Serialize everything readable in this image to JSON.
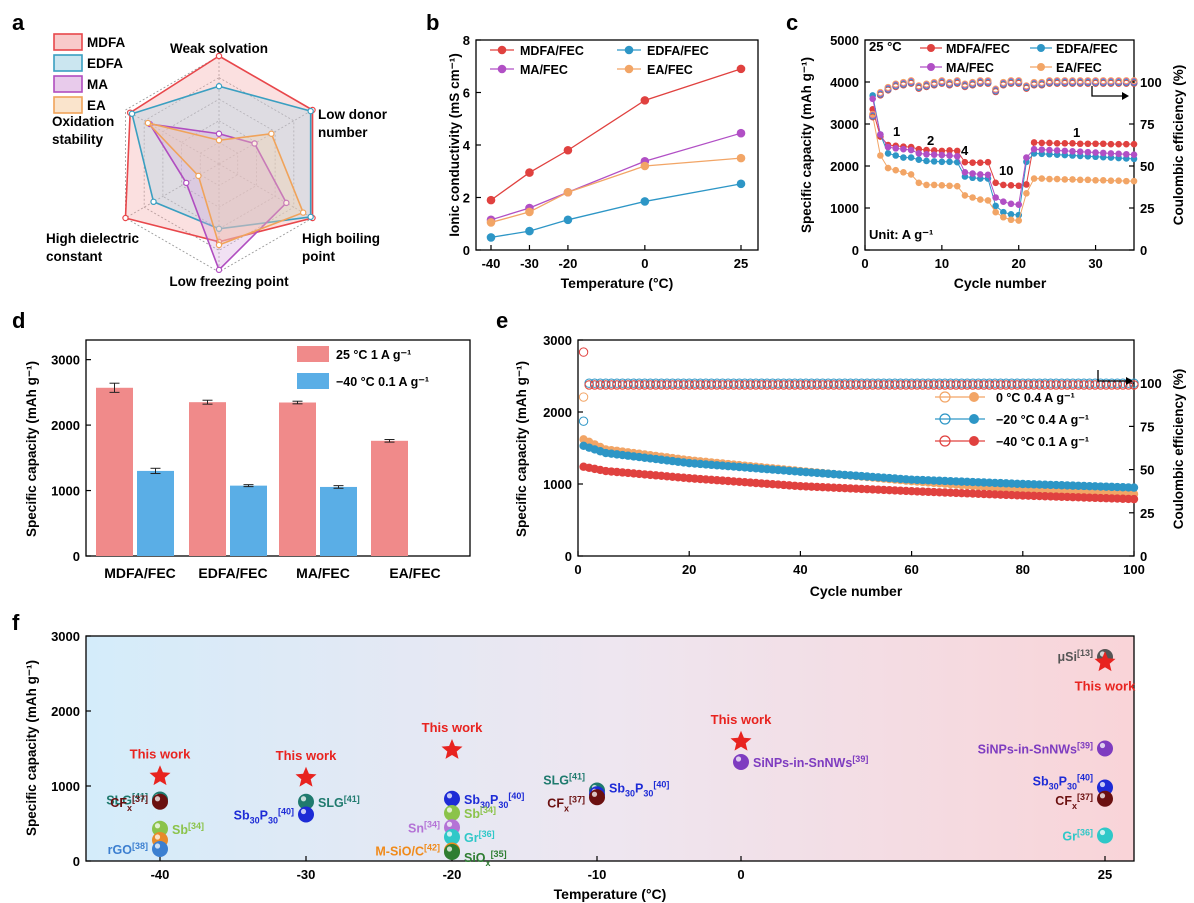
{
  "panels": {
    "a": {
      "letter": "a"
    },
    "b": {
      "letter": "b"
    },
    "c": {
      "letter": "c"
    },
    "d": {
      "letter": "d"
    },
    "e": {
      "letter": "e"
    },
    "f": {
      "letter": "f"
    }
  },
  "chart_data": [
    {
      "id": "a",
      "type": "radar",
      "axes": [
        "Weak solvation",
        "Low donor number",
        "High boiling point",
        "Low freezing point",
        "High dielectric constant",
        "Oxidation stability"
      ],
      "axis_label_lines": [
        [
          "Weak solvation"
        ],
        [
          "Low donor",
          "number"
        ],
        [
          "High boiling",
          "point"
        ],
        [
          "Low freezing point"
        ],
        [
          "High dielectric",
          "constant"
        ],
        [
          "Oxidation",
          "stability"
        ]
      ],
      "levels": 5,
      "series": [
        {
          "name": "MDFA",
          "color": "#e8474b",
          "fill": "#f4a6a6",
          "values": [
            1.0,
            1.0,
            1.0,
            0.72,
            1.0,
            0.95
          ]
        },
        {
          "name": "EDFA",
          "color": "#3a9fc1",
          "fill": "#a9d5e6",
          "values": [
            0.72,
            0.98,
            0.98,
            0.6,
            0.7,
            0.93
          ]
        },
        {
          "name": "MA",
          "color": "#b04dc0",
          "fill": "#d8a9de",
          "values": [
            0.28,
            0.38,
            0.72,
            0.98,
            0.35,
            0.74
          ]
        },
        {
          "name": "EA",
          "color": "#f0a35a",
          "fill": "#f7d2aa",
          "values": [
            0.22,
            0.56,
            0.9,
            0.75,
            0.22,
            0.76
          ]
        }
      ]
    },
    {
      "id": "b",
      "type": "line",
      "x": [
        -40,
        -30,
        -20,
        0,
        25
      ],
      "xticks": [
        "-40",
        "-30",
        "-20",
        "0",
        "25"
      ],
      "xlabel": "Temperature (°C)",
      "ylabel": "Ionic conductivity (mS cm⁻¹)",
      "ylim": [
        0,
        8
      ],
      "yticks": [
        0,
        2,
        4,
        6,
        8
      ],
      "series": [
        {
          "name": "MDFA/FEC",
          "color": "#e0413f",
          "values": [
            1.9,
            2.95,
            3.8,
            5.7,
            6.9
          ]
        },
        {
          "name": "EDFA/FEC",
          "color": "#2d96c6",
          "values": [
            0.48,
            0.72,
            1.15,
            1.85,
            2.52
          ]
        },
        {
          "name": "MA/FEC",
          "color": "#b14fc5",
          "values": [
            1.15,
            1.6,
            2.2,
            3.38,
            4.45
          ]
        },
        {
          "name": "EA/FEC",
          "color": "#f2a566",
          "values": [
            1.05,
            1.45,
            2.2,
            3.2,
            3.5
          ]
        }
      ]
    },
    {
      "id": "c",
      "type": "scatter-line",
      "xlabel": "Cycle number",
      "ylabel": "Specific capacity (mAh g⁻¹)",
      "ylabel_right": "Coulombic efficiency (%)",
      "xlim": [
        0,
        35
      ],
      "xticks": [
        0,
        10,
        20,
        30
      ],
      "ylim": [
        0,
        5000
      ],
      "yticks": [
        0,
        1000,
        2000,
        3000,
        4000,
        5000
      ],
      "ylim_right": [
        0,
        125
      ],
      "yticks_right": [
        0,
        25,
        50,
        75,
        100
      ],
      "annotations": [
        "25 °C",
        "1",
        "2",
        "4",
        "10",
        "1",
        "Unit: A g⁻¹"
      ],
      "series": [
        {
          "name": "MDFA/FEC",
          "color": "#e0413f",
          "values": [
            3350,
            2700,
            2500,
            2480,
            2460,
            2450,
            2400,
            2380,
            2370,
            2360,
            2370,
            2360,
            2090,
            2080,
            2080,
            2090,
            1600,
            1550,
            1540,
            1530,
            1560,
            2560,
            2550,
            2550,
            2540,
            2540,
            2540,
            2530,
            2530,
            2530,
            2530,
            2520,
            2520,
            2520,
            2520
          ]
        },
        {
          "name": "EDFA/FEC",
          "color": "#2d96c6",
          "values": [
            3680,
            2750,
            2300,
            2250,
            2200,
            2200,
            2150,
            2120,
            2110,
            2100,
            2100,
            2090,
            1750,
            1720,
            1700,
            1700,
            1050,
            900,
            850,
            830,
            2100,
            2300,
            2290,
            2280,
            2270,
            2260,
            2250,
            2240,
            2230,
            2220,
            2210,
            2200,
            2190,
            2180,
            2170
          ]
        },
        {
          "name": "MA/FEC",
          "color": "#b14fc5",
          "values": [
            3600,
            2750,
            2450,
            2420,
            2400,
            2380,
            2300,
            2280,
            2270,
            2260,
            2250,
            2230,
            1850,
            1820,
            1800,
            1790,
            1250,
            1150,
            1100,
            1080,
            2200,
            2400,
            2390,
            2380,
            2370,
            2360,
            2350,
            2340,
            2330,
            2320,
            2310,
            2300,
            2290,
            2280,
            2270
          ]
        },
        {
          "name": "EA/FEC",
          "color": "#f2a566",
          "values": [
            3200,
            2250,
            1950,
            1900,
            1850,
            1800,
            1600,
            1550,
            1550,
            1540,
            1530,
            1520,
            1300,
            1250,
            1200,
            1180,
            900,
            780,
            720,
            700,
            1350,
            1700,
            1700,
            1690,
            1690,
            1680,
            1680,
            1670,
            1670,
            1660,
            1660,
            1650,
            1650,
            1640,
            1640
          ]
        },
        {
          "name": "CE",
          "values": [
            80,
            93,
            96,
            98,
            99,
            100,
            97,
            98,
            99,
            100,
            99,
            100,
            98,
            99,
            100,
            100,
            95,
            99,
            100,
            100,
            97,
            99,
            99,
            100,
            100,
            100,
            100,
            100,
            100,
            100,
            100,
            100,
            100,
            100,
            100
          ]
        }
      ]
    },
    {
      "id": "d",
      "type": "bar",
      "categories": [
        "MDFA/FEC",
        "EDFA/FEC",
        "MA/FEC",
        "EA/FEC"
      ],
      "ylabel": "Specific capacity (mAh g⁻¹)",
      "ylim": [
        0,
        3300
      ],
      "yticks": [
        0,
        1000,
        2000,
        3000
      ],
      "series": [
        {
          "name": "25 °C  1 A g⁻¹",
          "color": "#f08a8a",
          "values": [
            2570,
            2350,
            2345,
            1760
          ],
          "errors": [
            70,
            30,
            20,
            20
          ]
        },
        {
          "name": "−40 °C 0.1 A g⁻¹",
          "color": "#5aaee6",
          "values": [
            1300,
            1075,
            1055,
            null
          ],
          "errors": [
            40,
            15,
            20,
            null
          ]
        }
      ]
    },
    {
      "id": "e",
      "type": "scatter-line",
      "xlabel": "Cycle number",
      "ylabel": "Specific capacity (mAh g⁻¹)",
      "ylabel_right": "Coulombic efficiency (%)",
      "xlim": [
        0,
        100
      ],
      "xticks": [
        0,
        20,
        40,
        60,
        80,
        100
      ],
      "ylim": [
        0,
        3000
      ],
      "yticks": [
        0,
        1000,
        2000,
        3000
      ],
      "ylim_right": [
        0,
        125
      ],
      "yticks_right": [
        0,
        25,
        50,
        75,
        100
      ],
      "series": [
        {
          "name": "0 °C 0.4 A g⁻¹",
          "color": "#f2a566",
          "start": 1620,
          "knots": [
            [
              1,
              1620
            ],
            [
              5,
              1480
            ],
            [
              20,
              1330
            ],
            [
              40,
              1180
            ],
            [
              60,
              1040
            ],
            [
              80,
              920
            ],
            [
              100,
              860
            ]
          ],
          "ce": 99
        },
        {
          "name": "−20 °C 0.4 A g⁻¹",
          "color": "#2d96c6",
          "start": 1530,
          "knots": [
            [
              1,
              1530
            ],
            [
              5,
              1430
            ],
            [
              20,
              1290
            ],
            [
              40,
              1170
            ],
            [
              60,
              1060
            ],
            [
              80,
              1000
            ],
            [
              100,
              950
            ]
          ],
          "ce": 100
        },
        {
          "name": "−40 °C 0.1 A g⁻¹",
          "color": "#e0413f",
          "start": 1240,
          "knots": [
            [
              1,
              1240
            ],
            [
              5,
              1180
            ],
            [
              20,
              1080
            ],
            [
              40,
              970
            ],
            [
              60,
              900
            ],
            [
              80,
              840
            ],
            [
              100,
              790
            ]
          ],
          "ce": 99
        }
      ]
    },
    {
      "id": "f",
      "type": "scatter",
      "xlabel": "Temperature (°C)",
      "ylabel": "Specific capacity (mAh g⁻¹)",
      "xticks": [
        "-40",
        "-30",
        "-20",
        "-10",
        "0",
        "25"
      ],
      "ylim": [
        0,
        3000
      ],
      "yticks": [
        0,
        1000,
        2000,
        3000
      ],
      "this_work_label": "This work",
      "this_work": [
        [
          -40,
          1130
        ],
        [
          -30,
          1110
        ],
        [
          -20,
          1480
        ],
        [
          0,
          1590
        ],
        [
          25,
          2650
        ]
      ],
      "points": [
        {
          "x": -40,
          "y": 820,
          "color": "#1f7a6e",
          "name": "SLG",
          "ref": "[41]"
        },
        {
          "x": -40,
          "y": 790,
          "color": "#6b1010",
          "name": "CFx",
          "ref": "[37]"
        },
        {
          "x": -40,
          "y": 430,
          "color": "#8bc34a",
          "name": "Sb",
          "ref": "[34]"
        },
        {
          "x": -40,
          "y": 280,
          "color": "#e88a2a",
          "name": "",
          "ref": ""
        },
        {
          "x": -40,
          "y": 160,
          "color": "#3c7fd0",
          "name": "rGO",
          "ref": "[38]"
        },
        {
          "x": -30,
          "y": 790,
          "color": "#1f7a6e",
          "name": "SLG",
          "ref": "[41]"
        },
        {
          "x": -30,
          "y": 620,
          "color": "#1d2bd6",
          "name": "Sb30P30",
          "ref": "[40]"
        },
        {
          "x": -20,
          "y": 830,
          "color": "#1d2bd6",
          "name": "Sb30P30",
          "ref": "[40]"
        },
        {
          "x": -20,
          "y": 640,
          "color": "#8bc34a",
          "name": "Sb",
          "ref": "[34]"
        },
        {
          "x": -20,
          "y": 450,
          "color": "#b473d6",
          "name": "Sn",
          "ref": "[34]"
        },
        {
          "x": -20,
          "y": 320,
          "color": "#2fc8c8",
          "name": "Gr",
          "ref": "[36]"
        },
        {
          "x": -20,
          "y": 140,
          "color": "#f08a1a",
          "name": "M-SiO/C",
          "ref": "[42]"
        },
        {
          "x": -20,
          "y": 120,
          "color": "#2e7d32",
          "name": "SiOx",
          "ref": "[35]"
        },
        {
          "x": -10,
          "y": 940,
          "color": "#1f7a6e",
          "name": "SLG",
          "ref": "[41]"
        },
        {
          "x": -10,
          "y": 890,
          "color": "#1d2bd6",
          "name": "Sb30P30",
          "ref": "[40]"
        },
        {
          "x": -10,
          "y": 850,
          "color": "#6b1010",
          "name": "CFx",
          "ref": "[37]"
        },
        {
          "x": 0,
          "y": 1320,
          "color": "#7e3cc0",
          "name": "SiNPs-in-SnNWs",
          "ref": "[39]"
        },
        {
          "x": 25,
          "y": 2720,
          "color": "#555555",
          "name": "μSi",
          "ref": "[13]"
        },
        {
          "x": 25,
          "y": 1500,
          "color": "#7e3cc0",
          "name": "SiNPs-in-SnNWs",
          "ref": "[39]"
        },
        {
          "x": 25,
          "y": 980,
          "color": "#1d2bd6",
          "name": "Sb30P30",
          "ref": "[40]"
        },
        {
          "x": 25,
          "y": 830,
          "color": "#6b1010",
          "name": "CFx",
          "ref": "[37]"
        },
        {
          "x": 25,
          "y": 340,
          "color": "#2fc8c8",
          "name": "Gr",
          "ref": "[36]"
        }
      ]
    }
  ]
}
